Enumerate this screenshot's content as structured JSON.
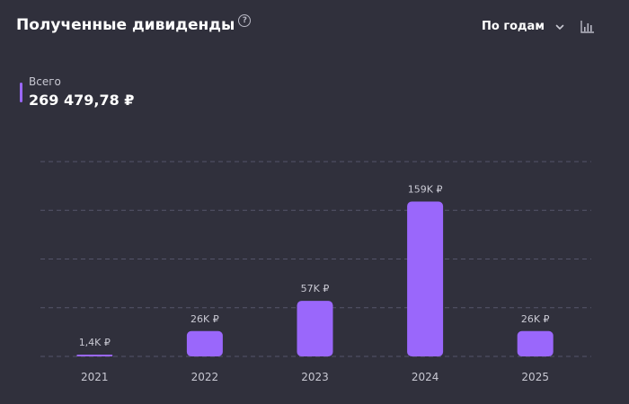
{
  "header": {
    "title": "Полученные дивиденды",
    "help_icon": "question-circle-icon",
    "period_select": "По годам",
    "chart_type_icon": "bar-chart-icon"
  },
  "total": {
    "label": "Всего",
    "value": "269 479,78 ₽"
  },
  "colors": {
    "background": "#30303c",
    "bar": "#9a67fb",
    "grid": "#55556a",
    "text_muted": "#c8c8d2"
  },
  "chart_data": {
    "type": "bar",
    "categories": [
      "2021",
      "2022",
      "2023",
      "2024",
      "2025"
    ],
    "values": [
      1400,
      26000,
      57000,
      159000,
      26000
    ],
    "data_labels": [
      "1,4K ₽",
      "26K ₽",
      "57K ₽",
      "159K ₽",
      "26K ₽"
    ],
    "title": "Полученные дивиденды",
    "xlabel": "",
    "ylabel": "",
    "ylim": [
      0,
      200000
    ],
    "grid": true
  }
}
